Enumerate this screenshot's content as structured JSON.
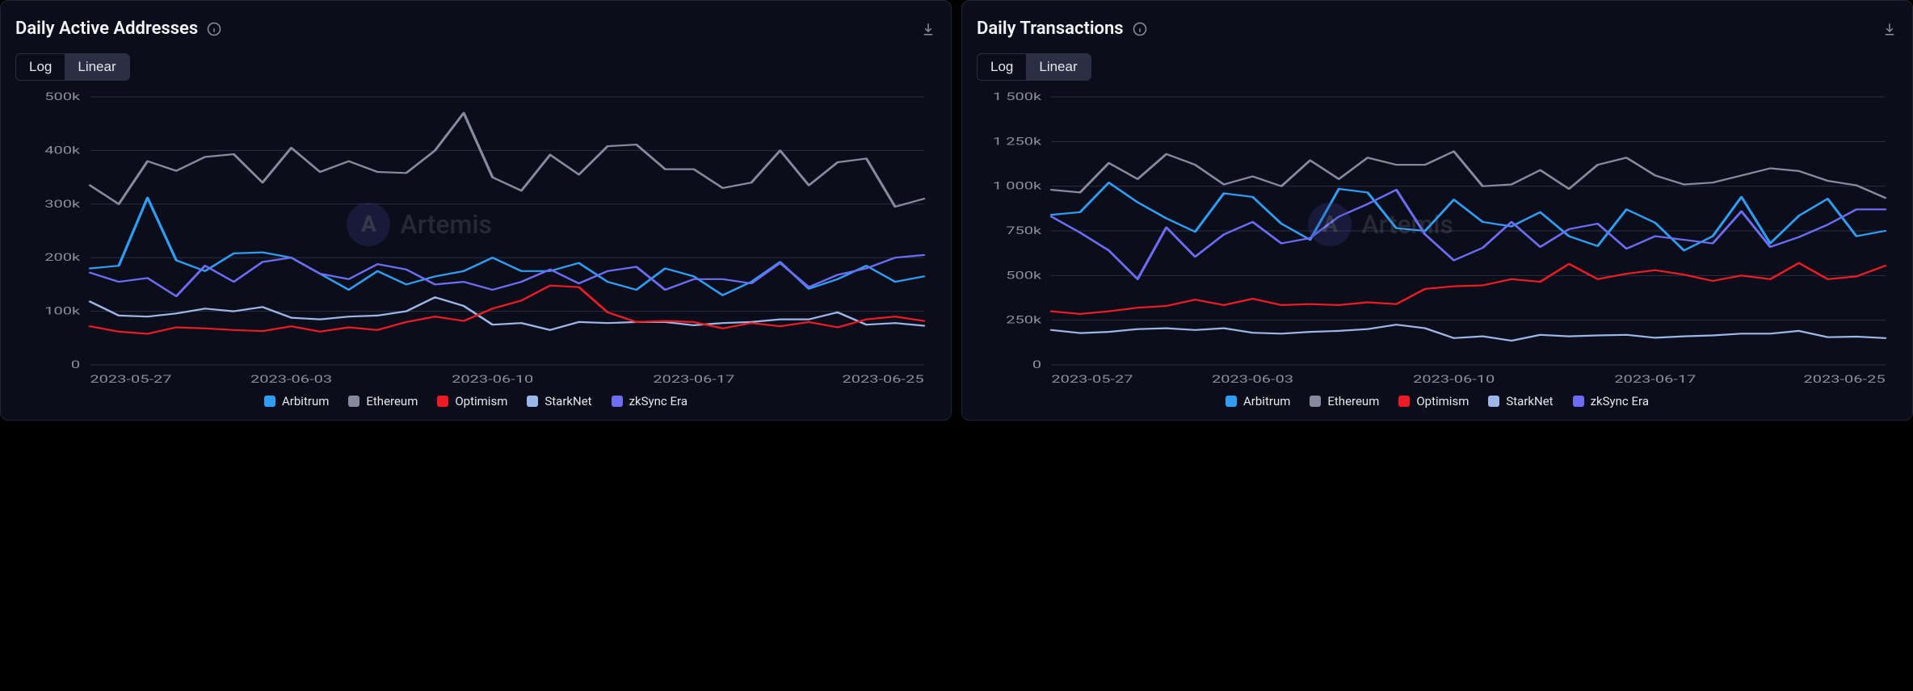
{
  "watermark": "Artemis",
  "series_colors": {
    "Arbitrum": "#2f9df4",
    "Ethereum": "#858a9d",
    "Optimism": "#ed1c24",
    "StarkNet": "#9db6e8",
    "zkSync Era": "#6c6cf4"
  },
  "panels": [
    {
      "id": "daa",
      "title": "Daily Active Addresses",
      "scale_toggle": {
        "options": [
          "Log",
          "Linear"
        ],
        "active": "Linear"
      },
      "chart": {
        "type": "line",
        "background_color": "#0b0d1a",
        "grid_color": "#2a2f44",
        "axis_label_color": "#8b8f9e",
        "axis_fontsize": 13,
        "line_width": 2.2,
        "x": {
          "dates": [
            "2023-05-27",
            "2023-05-28",
            "2023-05-29",
            "2023-05-30",
            "2023-05-31",
            "2023-06-01",
            "2023-06-02",
            "2023-06-03",
            "2023-06-04",
            "2023-06-05",
            "2023-06-06",
            "2023-06-07",
            "2023-06-08",
            "2023-06-09",
            "2023-06-10",
            "2023-06-11",
            "2023-06-12",
            "2023-06-13",
            "2023-06-14",
            "2023-06-15",
            "2023-06-16",
            "2023-06-17",
            "2023-06-18",
            "2023-06-19",
            "2023-06-20",
            "2023-06-21",
            "2023-06-22",
            "2023-06-23",
            "2023-06-24",
            "2023-06-25"
          ],
          "tick_labels": [
            "2023-05-27",
            "2023-06-03",
            "2023-06-10",
            "2023-06-17",
            "2023-06-25"
          ],
          "tick_indices": [
            0,
            7,
            14,
            21,
            29
          ]
        },
        "y": {
          "min": 0,
          "max": 500000,
          "ticks": [
            0,
            100000,
            200000,
            300000,
            400000,
            500000
          ],
          "tick_labels": [
            "0",
            "100k",
            "200k",
            "300k",
            "400k",
            "500k"
          ]
        },
        "series": [
          {
            "name": "Ethereum",
            "values": [
              335000,
              300000,
              380000,
              362000,
              388000,
              393000,
              340000,
              405000,
              360000,
              380000,
              360000,
              358000,
              400000,
              470000,
              350000,
              325000,
              392000,
              355000,
              408000,
              411000,
              365000,
              365000,
              330000,
              340000,
              400000,
              335000,
              378000,
              385000,
              295000,
              310000
            ]
          },
          {
            "name": "Arbitrum",
            "values": [
              180000,
              185000,
              312000,
              195000,
              175000,
              208000,
              210000,
              200000,
              170000,
              140000,
              175000,
              150000,
              165000,
              175000,
              200000,
              175000,
              175000,
              190000,
              155000,
              140000,
              180000,
              165000,
              130000,
              155000,
              192000,
              142000,
              160000,
              185000,
              155000,
              165000
            ]
          },
          {
            "name": "zkSync Era",
            "values": [
              172000,
              155000,
              162000,
              128000,
              185000,
              155000,
              192000,
              200000,
              170000,
              160000,
              188000,
              178000,
              150000,
              155000,
              140000,
              155000,
              178000,
              152000,
              175000,
              183000,
              140000,
              160000,
              160000,
              152000,
              190000,
              145000,
              168000,
              180000,
              200000,
              205000
            ]
          },
          {
            "name": "StarkNet",
            "values": [
              118000,
              92000,
              90000,
              96000,
              105000,
              100000,
              108000,
              88000,
              85000,
              90000,
              92000,
              100000,
              126000,
              110000,
              75000,
              78000,
              65000,
              80000,
              78000,
              80000,
              80000,
              74000,
              78000,
              80000,
              85000,
              85000,
              98000,
              75000,
              78000,
              73000
            ]
          },
          {
            "name": "Optimism",
            "values": [
              72000,
              62000,
              58000,
              70000,
              68000,
              65000,
              63000,
              72000,
              62000,
              70000,
              65000,
              80000,
              90000,
              82000,
              105000,
              120000,
              148000,
              145000,
              98000,
              80000,
              82000,
              80000,
              68000,
              78000,
              72000,
              80000,
              70000,
              85000,
              90000,
              82000
            ]
          }
        ],
        "legend_order": [
          "Arbitrum",
          "Ethereum",
          "Optimism",
          "StarkNet",
          "zkSync Era"
        ]
      }
    },
    {
      "id": "dtx",
      "title": "Daily Transactions",
      "scale_toggle": {
        "options": [
          "Log",
          "Linear"
        ],
        "active": "Linear"
      },
      "chart": {
        "type": "line",
        "background_color": "#0b0d1a",
        "grid_color": "#2a2f44",
        "axis_label_color": "#8b8f9e",
        "axis_fontsize": 13,
        "line_width": 2.2,
        "x": {
          "dates": [
            "2023-05-27",
            "2023-05-28",
            "2023-05-29",
            "2023-05-30",
            "2023-05-31",
            "2023-06-01",
            "2023-06-02",
            "2023-06-03",
            "2023-06-04",
            "2023-06-05",
            "2023-06-06",
            "2023-06-07",
            "2023-06-08",
            "2023-06-09",
            "2023-06-10",
            "2023-06-11",
            "2023-06-12",
            "2023-06-13",
            "2023-06-14",
            "2023-06-15",
            "2023-06-16",
            "2023-06-17",
            "2023-06-18",
            "2023-06-19",
            "2023-06-20",
            "2023-06-21",
            "2023-06-22",
            "2023-06-23",
            "2023-06-24",
            "2023-06-25"
          ],
          "tick_labels": [
            "2023-05-27",
            "2023-06-03",
            "2023-06-10",
            "2023-06-17",
            "2023-06-25"
          ],
          "tick_indices": [
            0,
            7,
            14,
            21,
            29
          ]
        },
        "y": {
          "min": 0,
          "max": 1500000,
          "ticks": [
            0,
            250000,
            500000,
            750000,
            1000000,
            1250000,
            1500000
          ],
          "tick_labels": [
            "0",
            "250k",
            "500k",
            "750k",
            "1 000k",
            "1 250k",
            "1 500k"
          ]
        },
        "series": [
          {
            "name": "Ethereum",
            "values": [
              980000,
              965000,
              1130000,
              1040000,
              1180000,
              1120000,
              1010000,
              1055000,
              1000000,
              1145000,
              1040000,
              1160000,
              1120000,
              1120000,
              1195000,
              1000000,
              1010000,
              1090000,
              985000,
              1120000,
              1160000,
              1060000,
              1010000,
              1020000,
              1060000,
              1100000,
              1085000,
              1030000,
              1005000,
              935000
            ]
          },
          {
            "name": "Arbitrum",
            "values": [
              840000,
              855000,
              1020000,
              910000,
              820000,
              745000,
              960000,
              940000,
              790000,
              700000,
              985000,
              965000,
              765000,
              750000,
              925000,
              800000,
              775000,
              855000,
              720000,
              665000,
              870000,
              795000,
              640000,
              720000,
              940000,
              680000,
              835000,
              930000,
              720000,
              750000
            ]
          },
          {
            "name": "zkSync Era",
            "values": [
              830000,
              740000,
              640000,
              480000,
              770000,
              605000,
              730000,
              800000,
              680000,
              710000,
              830000,
              900000,
              980000,
              730000,
              585000,
              655000,
              800000,
              660000,
              760000,
              790000,
              650000,
              720000,
              700000,
              680000,
              860000,
              660000,
              715000,
              785000,
              870000,
              870000
            ]
          },
          {
            "name": "Optimism",
            "values": [
              300000,
              285000,
              300000,
              320000,
              330000,
              365000,
              335000,
              370000,
              335000,
              340000,
              335000,
              350000,
              340000,
              425000,
              440000,
              445000,
              480000,
              465000,
              565000,
              480000,
              510000,
              530000,
              505000,
              470000,
              500000,
              480000,
              570000,
              480000,
              495000,
              555000
            ]
          },
          {
            "name": "StarkNet",
            "values": [
              195000,
              178000,
              185000,
              200000,
              205000,
              195000,
              205000,
              180000,
              175000,
              185000,
              190000,
              200000,
              225000,
              205000,
              150000,
              160000,
              135000,
              168000,
              160000,
              165000,
              168000,
              152000,
              160000,
              165000,
              175000,
              175000,
              190000,
              155000,
              158000,
              150000
            ]
          }
        ],
        "legend_order": [
          "Arbitrum",
          "Ethereum",
          "Optimism",
          "StarkNet",
          "zkSync Era"
        ]
      }
    }
  ]
}
